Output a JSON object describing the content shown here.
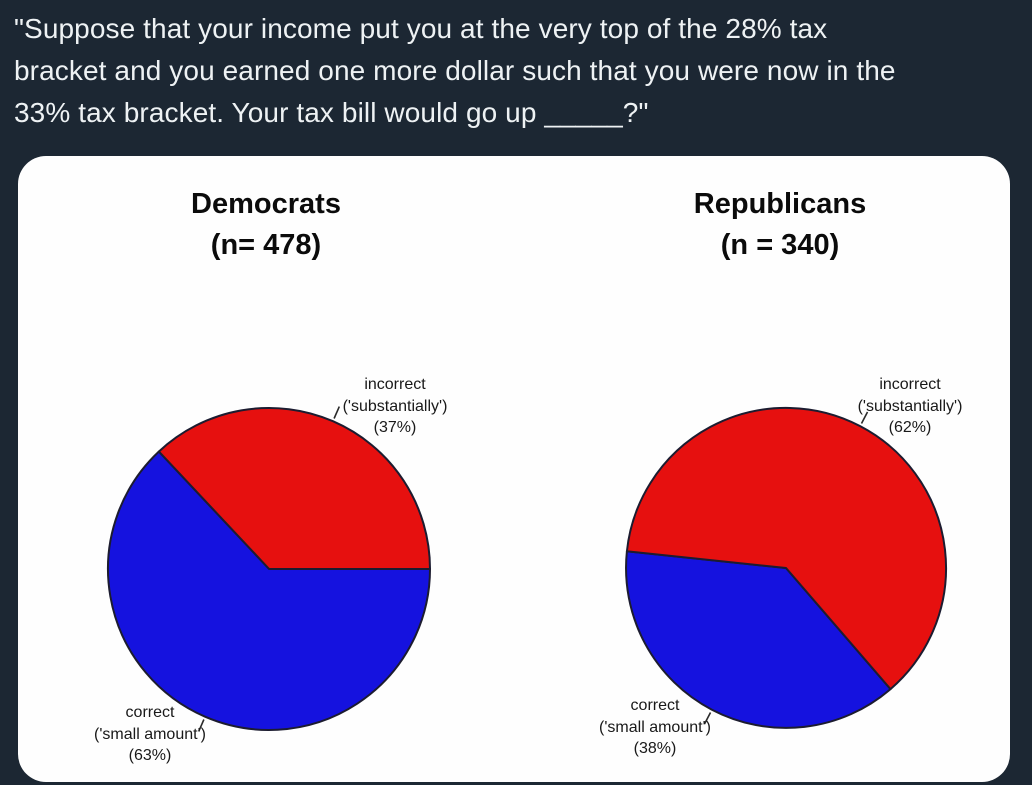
{
  "page": {
    "background_color": "#1c2733",
    "card_color": "#fefefe"
  },
  "question": {
    "lines": [
      "\"Suppose that your income put you at the very top of the 28% tax",
      "bracket and you earned one more dollar such that you were now in the",
      "33% tax bracket. Your tax bill would go up _____?\""
    ]
  },
  "chart_data": [
    {
      "type": "pie",
      "title": "Democrats",
      "subtitle": "(n= 478)",
      "start_angle_deg": 0,
      "direction": "ccw",
      "radius_px": 161,
      "slices": [
        {
          "name": "incorrect",
          "pct": 37,
          "color": "#e6100f",
          "label_lines": [
            "incorrect",
            "('substantially')",
            "(37%)"
          ]
        },
        {
          "name": "correct",
          "pct": 63,
          "color": "#1512df",
          "label_lines": [
            "correct",
            "('small amount')",
            "(63%)"
          ]
        }
      ]
    },
    {
      "type": "pie",
      "title": "Republicans",
      "subtitle": "(n = 340)",
      "start_angle_deg": 174,
      "direction": "ccw",
      "radius_px": 160,
      "slices": [
        {
          "name": "correct",
          "pct": 38,
          "color": "#1512df",
          "label_lines": [
            "correct",
            "('small amount')",
            "(38%)"
          ]
        },
        {
          "name": "incorrect",
          "pct": 62,
          "color": "#e6100f",
          "label_lines": [
            "incorrect",
            "('substantially')",
            "(62%)"
          ]
        }
      ]
    }
  ]
}
